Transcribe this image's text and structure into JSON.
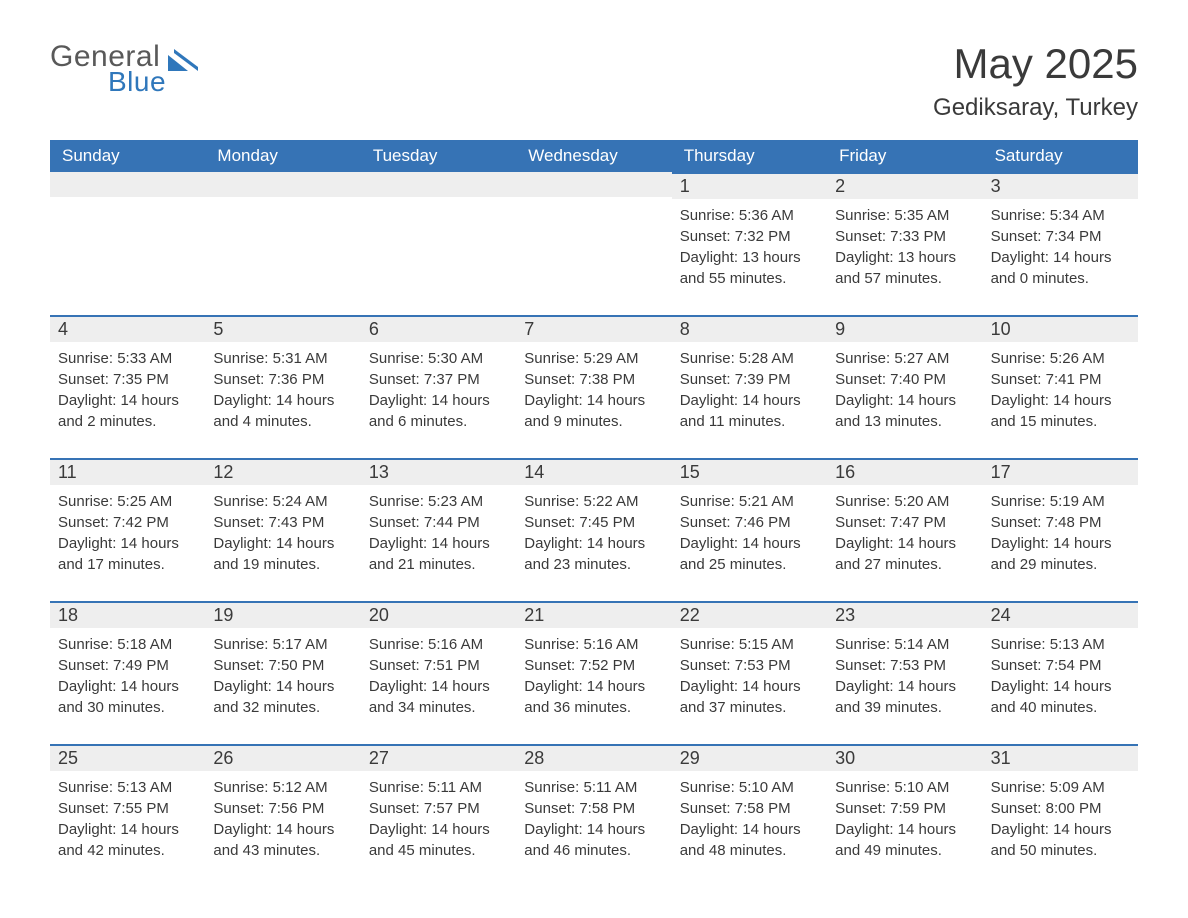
{
  "brand": {
    "line1": "General",
    "line2": "Blue",
    "icon_color": "#2f77bb"
  },
  "title": {
    "month": "May 2025",
    "location": "Gediksaray, Turkey"
  },
  "colors": {
    "header_bg": "#3673b5",
    "header_text": "#ffffff",
    "daynum_bg": "#eeeeee",
    "daynum_border": "#3673b5",
    "body_text": "#3a3a3a",
    "page_bg": "#ffffff"
  },
  "typography": {
    "title_fontsize_pt": 32,
    "location_fontsize_pt": 18,
    "header_fontsize_pt": 13,
    "daynum_fontsize_pt": 14,
    "info_fontsize_pt": 11,
    "font_family": "Arial"
  },
  "day_headers": [
    "Sunday",
    "Monday",
    "Tuesday",
    "Wednesday",
    "Thursday",
    "Friday",
    "Saturday"
  ],
  "weeks": [
    [
      null,
      null,
      null,
      null,
      {
        "n": "1",
        "sunrise": "5:36 AM",
        "sunset": "7:32 PM",
        "daylight": "13 hours and 55 minutes."
      },
      {
        "n": "2",
        "sunrise": "5:35 AM",
        "sunset": "7:33 PM",
        "daylight": "13 hours and 57 minutes."
      },
      {
        "n": "3",
        "sunrise": "5:34 AM",
        "sunset": "7:34 PM",
        "daylight": "14 hours and 0 minutes."
      }
    ],
    [
      {
        "n": "4",
        "sunrise": "5:33 AM",
        "sunset": "7:35 PM",
        "daylight": "14 hours and 2 minutes."
      },
      {
        "n": "5",
        "sunrise": "5:31 AM",
        "sunset": "7:36 PM",
        "daylight": "14 hours and 4 minutes."
      },
      {
        "n": "6",
        "sunrise": "5:30 AM",
        "sunset": "7:37 PM",
        "daylight": "14 hours and 6 minutes."
      },
      {
        "n": "7",
        "sunrise": "5:29 AM",
        "sunset": "7:38 PM",
        "daylight": "14 hours and 9 minutes."
      },
      {
        "n": "8",
        "sunrise": "5:28 AM",
        "sunset": "7:39 PM",
        "daylight": "14 hours and 11 minutes."
      },
      {
        "n": "9",
        "sunrise": "5:27 AM",
        "sunset": "7:40 PM",
        "daylight": "14 hours and 13 minutes."
      },
      {
        "n": "10",
        "sunrise": "5:26 AM",
        "sunset": "7:41 PM",
        "daylight": "14 hours and 15 minutes."
      }
    ],
    [
      {
        "n": "11",
        "sunrise": "5:25 AM",
        "sunset": "7:42 PM",
        "daylight": "14 hours and 17 minutes."
      },
      {
        "n": "12",
        "sunrise": "5:24 AM",
        "sunset": "7:43 PM",
        "daylight": "14 hours and 19 minutes."
      },
      {
        "n": "13",
        "sunrise": "5:23 AM",
        "sunset": "7:44 PM",
        "daylight": "14 hours and 21 minutes."
      },
      {
        "n": "14",
        "sunrise": "5:22 AM",
        "sunset": "7:45 PM",
        "daylight": "14 hours and 23 minutes."
      },
      {
        "n": "15",
        "sunrise": "5:21 AM",
        "sunset": "7:46 PM",
        "daylight": "14 hours and 25 minutes."
      },
      {
        "n": "16",
        "sunrise": "5:20 AM",
        "sunset": "7:47 PM",
        "daylight": "14 hours and 27 minutes."
      },
      {
        "n": "17",
        "sunrise": "5:19 AM",
        "sunset": "7:48 PM",
        "daylight": "14 hours and 29 minutes."
      }
    ],
    [
      {
        "n": "18",
        "sunrise": "5:18 AM",
        "sunset": "7:49 PM",
        "daylight": "14 hours and 30 minutes."
      },
      {
        "n": "19",
        "sunrise": "5:17 AM",
        "sunset": "7:50 PM",
        "daylight": "14 hours and 32 minutes."
      },
      {
        "n": "20",
        "sunrise": "5:16 AM",
        "sunset": "7:51 PM",
        "daylight": "14 hours and 34 minutes."
      },
      {
        "n": "21",
        "sunrise": "5:16 AM",
        "sunset": "7:52 PM",
        "daylight": "14 hours and 36 minutes."
      },
      {
        "n": "22",
        "sunrise": "5:15 AM",
        "sunset": "7:53 PM",
        "daylight": "14 hours and 37 minutes."
      },
      {
        "n": "23",
        "sunrise": "5:14 AM",
        "sunset": "7:53 PM",
        "daylight": "14 hours and 39 minutes."
      },
      {
        "n": "24",
        "sunrise": "5:13 AM",
        "sunset": "7:54 PM",
        "daylight": "14 hours and 40 minutes."
      }
    ],
    [
      {
        "n": "25",
        "sunrise": "5:13 AM",
        "sunset": "7:55 PM",
        "daylight": "14 hours and 42 minutes."
      },
      {
        "n": "26",
        "sunrise": "5:12 AM",
        "sunset": "7:56 PM",
        "daylight": "14 hours and 43 minutes."
      },
      {
        "n": "27",
        "sunrise": "5:11 AM",
        "sunset": "7:57 PM",
        "daylight": "14 hours and 45 minutes."
      },
      {
        "n": "28",
        "sunrise": "5:11 AM",
        "sunset": "7:58 PM",
        "daylight": "14 hours and 46 minutes."
      },
      {
        "n": "29",
        "sunrise": "5:10 AM",
        "sunset": "7:58 PM",
        "daylight": "14 hours and 48 minutes."
      },
      {
        "n": "30",
        "sunrise": "5:10 AM",
        "sunset": "7:59 PM",
        "daylight": "14 hours and 49 minutes."
      },
      {
        "n": "31",
        "sunrise": "5:09 AM",
        "sunset": "8:00 PM",
        "daylight": "14 hours and 50 minutes."
      }
    ]
  ],
  "labels": {
    "sunrise_prefix": "Sunrise: ",
    "sunset_prefix": "Sunset: ",
    "daylight_prefix": "Daylight: "
  }
}
